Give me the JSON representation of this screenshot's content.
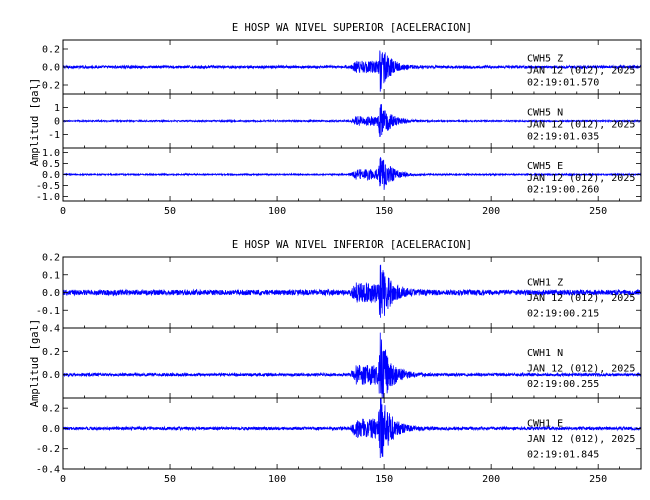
{
  "trace_color": "#0000ff",
  "chart_data": [
    {
      "type": "line",
      "title": "E HOSP WA NIVEL SUPERIOR [ACELERACION]",
      "ylabel": "Amplitud [gal]",
      "xlim": [
        0,
        270
      ],
      "x_ticks": [
        0,
        50,
        100,
        150,
        200,
        250
      ],
      "channels": [
        {
          "station": "CWH5",
          "component": "Z",
          "date": "JAN 12 (012), 2025",
          "time": "02:19:01.570",
          "ylim": [
            -0.3,
            0.3
          ],
          "y_ticks": [
            -0.2,
            0.0,
            0.2
          ],
          "y_tick_labels": [
            "-0.2",
            "0.0",
            "0.2"
          ],
          "noise": 0.015,
          "peak": 0.26,
          "p_onset": 134,
          "s_onset": 147
        },
        {
          "station": "CWH5",
          "component": "N",
          "date": "JAN 12 (012), 2025",
          "time": "02:19:01.035",
          "ylim": [
            -2,
            2
          ],
          "y_ticks": [
            -1,
            0,
            1
          ],
          "y_tick_labels": [
            "-1",
            "0",
            "1"
          ],
          "noise": 0.05,
          "peak": 1.5,
          "p_onset": 134,
          "s_onset": 147
        },
        {
          "station": "CWH5",
          "component": "E",
          "date": "JAN 12 (012), 2025",
          "time": "02:19:00.260",
          "ylim": [
            -1.2,
            1.2
          ],
          "y_ticks": [
            -1.0,
            -0.5,
            0.0,
            0.5,
            1.0
          ],
          "y_tick_labels": [
            "-1.0",
            "-0.5",
            "0.0",
            "0.5",
            "1.0"
          ],
          "noise": 0.03,
          "peak": 1.0,
          "p_onset": 134,
          "s_onset": 147
        }
      ]
    },
    {
      "type": "line",
      "title": "E HOSP WA NIVEL INFERIOR [ACELERACION]",
      "ylabel": "Amplitud [gal]",
      "xlim": [
        0,
        270
      ],
      "x_ticks": [
        0,
        50,
        100,
        150,
        200,
        250
      ],
      "channels": [
        {
          "station": "CWH1",
          "component": "Z",
          "date": "JAN 12 (012), 2025",
          "time": "02:19:00.215",
          "ylim": [
            -0.2,
            0.2
          ],
          "y_ticks": [
            -0.1,
            0.0,
            0.1,
            0.2
          ],
          "y_tick_labels": [
            "-0.1",
            "0.0",
            "0.1",
            "0.2"
          ],
          "noise": 0.015,
          "peak": 0.19,
          "p_onset": 134,
          "s_onset": 147
        },
        {
          "station": "CWH1",
          "component": "N",
          "date": "JAN 12 (012), 2025",
          "time": "02:19:00.255",
          "ylim": [
            -0.2,
            0.4
          ],
          "y_ticks": [
            0.0,
            0.2,
            0.4
          ],
          "y_tick_labels": [
            "0.0",
            "0.2",
            "0.4"
          ],
          "noise": 0.012,
          "peak": 0.35,
          "p_onset": 134,
          "s_onset": 147
        },
        {
          "station": "CWH1",
          "component": "E",
          "date": "JAN 12 (012), 2025",
          "time": "02:19:01.845",
          "ylim": [
            -0.4,
            0.3
          ],
          "y_ticks": [
            -0.4,
            -0.2,
            0.0,
            0.2
          ],
          "y_tick_labels": [
            "-0.4",
            "-0.2",
            "0.0",
            "0.2"
          ],
          "noise": 0.015,
          "peak": 0.37,
          "p_onset": 134,
          "s_onset": 147
        }
      ]
    }
  ]
}
